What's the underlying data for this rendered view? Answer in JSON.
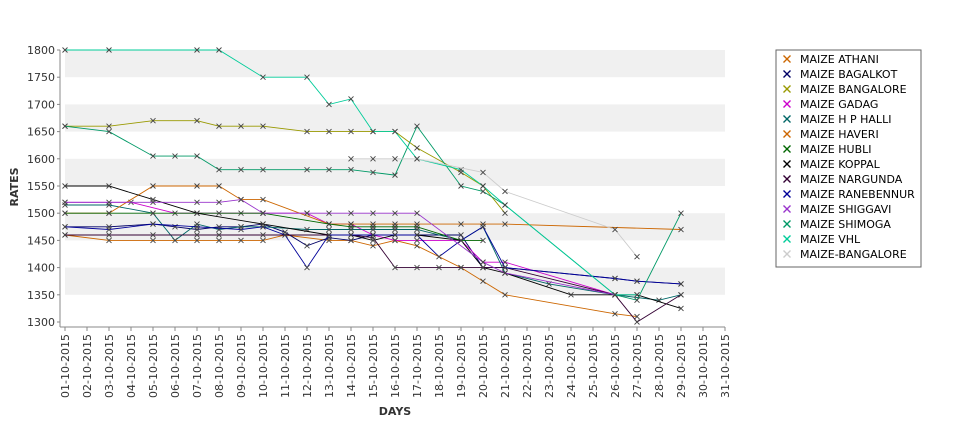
{
  "chart_data": {
    "type": "line",
    "xlabel": "DAYS",
    "ylabel": "RATES",
    "ylim": [
      1300,
      1800
    ],
    "yticks": [
      1300,
      1350,
      1400,
      1450,
      1500,
      1550,
      1600,
      1650,
      1700,
      1750,
      1800
    ],
    "categories": [
      "01-10-2015",
      "02-10-2015",
      "03-10-2015",
      "04-10-2015",
      "05-10-2015",
      "06-10-2015",
      "07-10-2015",
      "08-10-2015",
      "09-10-2015",
      "10-10-2015",
      "11-10-2015",
      "12-10-2015",
      "13-10-2015",
      "14-10-2015",
      "15-10-2015",
      "16-10-2015",
      "17-10-2015",
      "18-10-2015",
      "19-10-2015",
      "20-10-2015",
      "21-10-2015",
      "22-10-2015",
      "23-10-2015",
      "24-10-2015",
      "25-10-2015",
      "26-10-2015",
      "27-10-2015",
      "28-10-2015",
      "29-10-2015",
      "30-10-2015",
      "31-10-2015"
    ],
    "grid": "horizontal bands",
    "legend_position": "right",
    "series": [
      {
        "name": "MAIZE ATHANI",
        "color": "#cc6600",
        "points": [
          [
            0,
            1460
          ],
          [
            2,
            1450
          ],
          [
            4,
            1450
          ],
          [
            6,
            1450
          ],
          [
            7,
            1450
          ],
          [
            8,
            1450
          ],
          [
            9,
            1450
          ],
          [
            10,
            1460
          ],
          [
            12,
            1450
          ],
          [
            13,
            1450
          ],
          [
            14,
            1440
          ],
          [
            15,
            1450
          ],
          [
            16,
            1440
          ],
          [
            18,
            1400
          ],
          [
            19,
            1375
          ],
          [
            20,
            1350
          ],
          [
            25,
            1315
          ],
          [
            26,
            1310
          ]
        ]
      },
      {
        "name": "MAIZE BAGALKOT",
        "color": "#000066",
        "points": [
          [
            0,
            1475
          ],
          [
            2,
            1475
          ],
          [
            4,
            1480
          ],
          [
            5,
            1475
          ],
          [
            6,
            1470
          ],
          [
            7,
            1475
          ],
          [
            8,
            1475
          ],
          [
            9,
            1480
          ],
          [
            10,
            1465
          ],
          [
            11,
            1440
          ],
          [
            12,
            1455
          ],
          [
            13,
            1450
          ],
          [
            14,
            1460
          ],
          [
            15,
            1460
          ],
          [
            16,
            1460
          ],
          [
            18,
            1460
          ],
          [
            19,
            1400
          ],
          [
            20,
            1400
          ],
          [
            25,
            1380
          ],
          [
            26,
            1375
          ],
          [
            28,
            1370
          ]
        ]
      },
      {
        "name": "MAIZE BANGALORE",
        "color": "#999900",
        "points": [
          [
            0,
            1660
          ],
          [
            2,
            1660
          ],
          [
            4,
            1670
          ],
          [
            6,
            1670
          ],
          [
            7,
            1660
          ],
          [
            8,
            1660
          ],
          [
            9,
            1660
          ],
          [
            11,
            1650
          ],
          [
            12,
            1650
          ],
          [
            13,
            1650
          ],
          [
            14,
            1650
          ],
          [
            15,
            1650
          ],
          [
            16,
            1620
          ],
          [
            18,
            1575
          ],
          [
            19,
            1550
          ],
          [
            20,
            1500
          ]
        ]
      },
      {
        "name": "MAIZE GADAG",
        "color": "#cc00cc",
        "points": [
          [
            0,
            1520
          ],
          [
            3,
            1520
          ],
          [
            5,
            1500
          ],
          [
            6,
            1500
          ],
          [
            8,
            1500
          ],
          [
            9,
            1500
          ],
          [
            11,
            1500
          ],
          [
            12,
            1480
          ],
          [
            13,
            1480
          ],
          [
            14,
            1460
          ],
          [
            15,
            1450
          ],
          [
            16,
            1450
          ],
          [
            18,
            1450
          ],
          [
            19,
            1410
          ],
          [
            20,
            1410
          ],
          [
            25,
            1350
          ]
        ]
      },
      {
        "name": "MAIZE H P HALLI",
        "color": "#006666",
        "points": [
          [
            0,
            1515
          ],
          [
            2,
            1515
          ],
          [
            4,
            1500
          ],
          [
            5,
            1450
          ],
          [
            6,
            1480
          ],
          [
            7,
            1470
          ],
          [
            8,
            1475
          ],
          [
            9,
            1475
          ],
          [
            11,
            1470
          ],
          [
            12,
            1470
          ],
          [
            13,
            1470
          ],
          [
            14,
            1470
          ],
          [
            15,
            1470
          ],
          [
            16,
            1470
          ],
          [
            18,
            1450
          ],
          [
            19,
            1475
          ],
          [
            20,
            1390
          ],
          [
            22,
            1370
          ],
          [
            25,
            1350
          ],
          [
            27,
            1340
          ],
          [
            28,
            1350
          ]
        ]
      },
      {
        "name": "MAIZE HAVERI",
        "color": "#cc6600",
        "points": [
          [
            0,
            1500
          ],
          [
            2,
            1500
          ],
          [
            4,
            1550
          ],
          [
            6,
            1550
          ],
          [
            7,
            1550
          ],
          [
            8,
            1525
          ],
          [
            9,
            1525
          ],
          [
            12,
            1480
          ],
          [
            13,
            1480
          ],
          [
            14,
            1480
          ],
          [
            15,
            1480
          ],
          [
            16,
            1480
          ],
          [
            18,
            1480
          ],
          [
            19,
            1480
          ],
          [
            20,
            1480
          ],
          [
            28,
            1470
          ]
        ]
      },
      {
        "name": "MAIZE HUBLI",
        "color": "#006600",
        "points": [
          [
            0,
            1500
          ],
          [
            2,
            1500
          ],
          [
            4,
            1500
          ],
          [
            6,
            1500
          ],
          [
            7,
            1500
          ],
          [
            9,
            1500
          ],
          [
            12,
            1480
          ],
          [
            13,
            1475
          ],
          [
            14,
            1475
          ],
          [
            15,
            1475
          ],
          [
            16,
            1475
          ],
          [
            18,
            1450
          ],
          [
            19,
            1450
          ]
        ]
      },
      {
        "name": "MAIZE KOPPAL",
        "color": "#000000",
        "points": [
          [
            0,
            1550
          ],
          [
            2,
            1550
          ],
          [
            4,
            1525
          ],
          [
            6,
            1500
          ],
          [
            9,
            1480
          ],
          [
            12,
            1460
          ],
          [
            13,
            1460
          ],
          [
            14,
            1450
          ],
          [
            15,
            1460
          ],
          [
            16,
            1460
          ],
          [
            18,
            1450
          ],
          [
            19,
            1400
          ],
          [
            20,
            1390
          ],
          [
            23,
            1350
          ],
          [
            25,
            1350
          ],
          [
            26,
            1350
          ],
          [
            28,
            1325
          ]
        ]
      },
      {
        "name": "MAIZE NARGUNDA",
        "color": "#330033",
        "points": [
          [
            0,
            1460
          ],
          [
            2,
            1460
          ],
          [
            4,
            1460
          ],
          [
            6,
            1460
          ],
          [
            7,
            1460
          ],
          [
            9,
            1460
          ],
          [
            12,
            1460
          ],
          [
            13,
            1460
          ],
          [
            14,
            1455
          ],
          [
            15,
            1400
          ],
          [
            16,
            1400
          ],
          [
            17,
            1400
          ],
          [
            18,
            1400
          ],
          [
            19,
            1400
          ],
          [
            20,
            1400
          ],
          [
            25,
            1350
          ],
          [
            26,
            1300
          ],
          [
            28,
            1350
          ]
        ]
      },
      {
        "name": "MAIZE RANEBENNUR",
        "color": "#000099",
        "points": [
          [
            0,
            1475
          ],
          [
            2,
            1470
          ],
          [
            4,
            1480
          ],
          [
            6,
            1475
          ],
          [
            8,
            1470
          ],
          [
            9,
            1475
          ],
          [
            10,
            1460
          ],
          [
            11,
            1400
          ],
          [
            12,
            1460
          ],
          [
            13,
            1460
          ],
          [
            14,
            1460
          ],
          [
            15,
            1460
          ],
          [
            16,
            1460
          ],
          [
            17,
            1420
          ],
          [
            18,
            1450
          ],
          [
            19,
            1475
          ],
          [
            20,
            1400
          ],
          [
            25,
            1380
          ],
          [
            26,
            1375
          ],
          [
            28,
            1370
          ]
        ]
      },
      {
        "name": "MAIZE SHIGGAVI",
        "color": "#9933cc",
        "points": [
          [
            0,
            1520
          ],
          [
            2,
            1520
          ],
          [
            4,
            1520
          ],
          [
            6,
            1520
          ],
          [
            7,
            1520
          ],
          [
            8,
            1525
          ],
          [
            9,
            1500
          ],
          [
            11,
            1500
          ],
          [
            12,
            1500
          ],
          [
            13,
            1500
          ],
          [
            14,
            1500
          ],
          [
            15,
            1500
          ],
          [
            16,
            1500
          ],
          [
            19,
            1410
          ],
          [
            20,
            1390
          ],
          [
            25,
            1350
          ]
        ]
      },
      {
        "name": "MAIZE SHIMOGA",
        "color": "#009966",
        "points": [
          [
            0,
            1660
          ],
          [
            2,
            1650
          ],
          [
            4,
            1605
          ],
          [
            5,
            1605
          ],
          [
            6,
            1605
          ],
          [
            7,
            1580
          ],
          [
            8,
            1580
          ],
          [
            9,
            1580
          ],
          [
            11,
            1580
          ],
          [
            12,
            1580
          ],
          [
            13,
            1580
          ],
          [
            14,
            1575
          ],
          [
            15,
            1570
          ],
          [
            16,
            1660
          ],
          [
            18,
            1550
          ],
          [
            19,
            1540
          ],
          [
            20,
            1515
          ],
          [
            25,
            1350
          ],
          [
            26,
            1340
          ],
          [
            28,
            1500
          ]
        ]
      },
      {
        "name": "MAIZE VHL",
        "color": "#00cc99",
        "points": [
          [
            0,
            1800
          ],
          [
            2,
            1800
          ],
          [
            6,
            1800
          ],
          [
            7,
            1800
          ],
          [
            9,
            1750
          ],
          [
            11,
            1750
          ],
          [
            12,
            1700
          ],
          [
            13,
            1710
          ],
          [
            14,
            1650
          ],
          [
            15,
            1650
          ],
          [
            16,
            1600
          ],
          [
            18,
            1580
          ],
          [
            19,
            1550
          ],
          [
            20,
            1515
          ],
          [
            25,
            1350
          ],
          [
            26,
            1350
          ]
        ]
      },
      {
        "name": "MAIZE-BANGALORE",
        "color": "#cccccc",
        "points": [
          [
            13,
            1600
          ],
          [
            14,
            1600
          ],
          [
            15,
            1600
          ],
          [
            16,
            1600
          ],
          [
            19,
            1575
          ],
          [
            20,
            1540
          ],
          [
            25,
            1470
          ],
          [
            26,
            1420
          ]
        ]
      }
    ]
  }
}
